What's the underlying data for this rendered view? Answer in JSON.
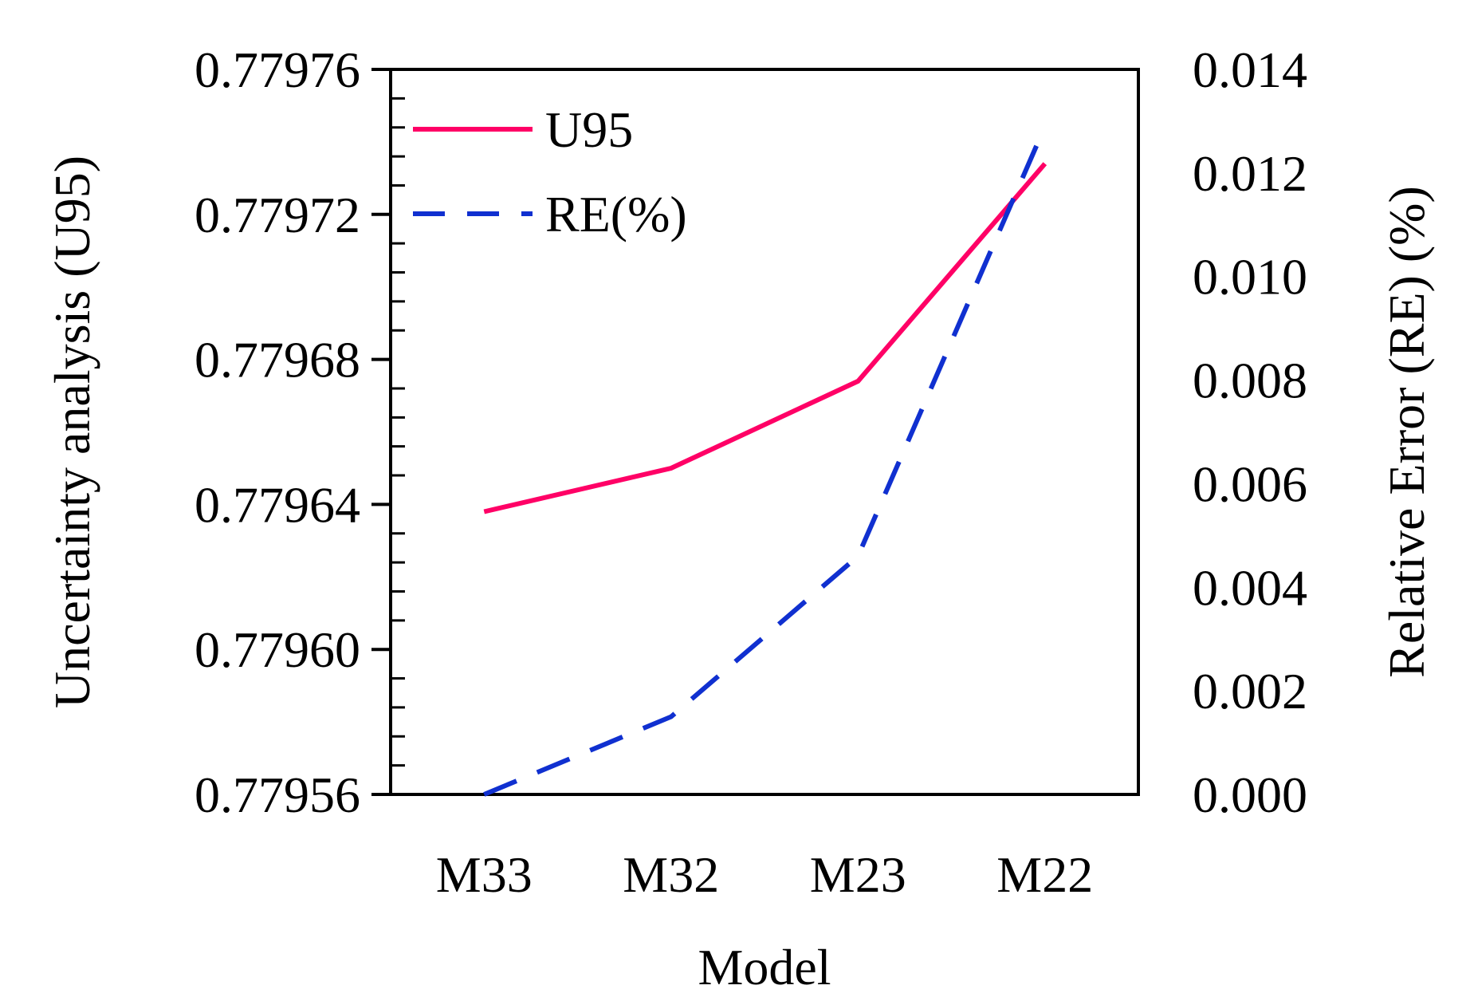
{
  "chart_data": {
    "type": "line",
    "title": "",
    "xlabel": "Model",
    "ylabel": "Uncertainty analysis (U95)",
    "y2label": "Relative Error (RE) (%)",
    "categories": [
      "M33",
      "M32",
      "M23",
      "M22"
    ],
    "ylim": [
      0.77956,
      0.77976
    ],
    "y2lim": [
      0.0,
      0.014
    ],
    "yticks": [
      "0.77956",
      "0.77960",
      "0.77964",
      "0.77968",
      "0.77972",
      "0.77976"
    ],
    "y2ticks": [
      "0.000",
      "0.002",
      "0.004",
      "0.006",
      "0.008",
      "0.010",
      "0.012",
      "0.014"
    ],
    "legend_position": "top-left",
    "grid": false,
    "series": [
      {
        "name": "U95",
        "axis": "left",
        "color": "#ff0066",
        "style": "solid",
        "values": [
          0.779638,
          0.77965,
          0.779674,
          0.779734
        ]
      },
      {
        "name": "RE(%)",
        "axis": "right",
        "color": "#1030d0",
        "style": "dashed",
        "values": [
          0.0,
          0.0015,
          0.0046,
          0.0129
        ]
      }
    ]
  }
}
